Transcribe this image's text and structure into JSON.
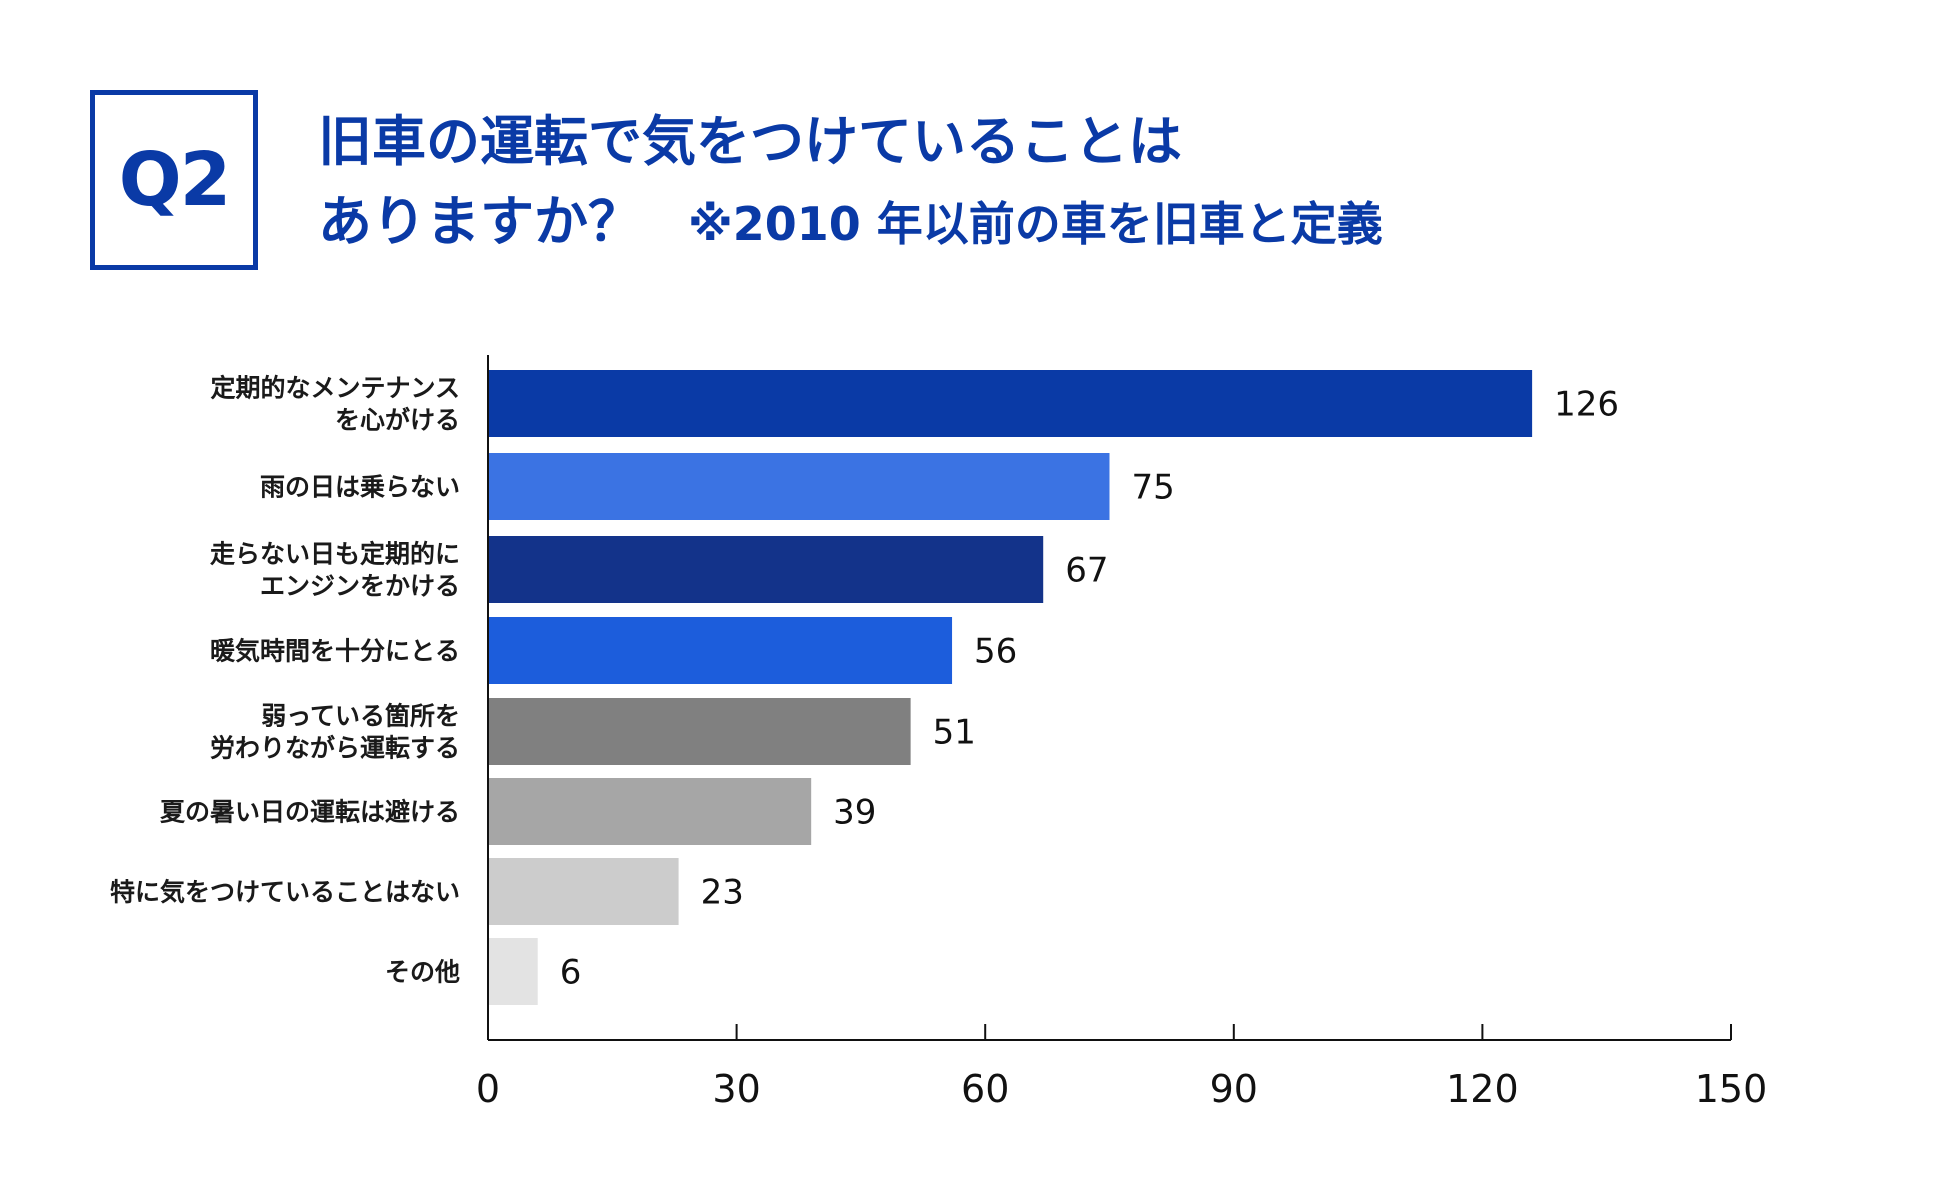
{
  "header": {
    "badge": "Q2",
    "title_line1": "旧車の運転で気をつけていることは",
    "title_line2": "ありますか？",
    "title_note": "※2010 年以前の車を旧車と定義"
  },
  "chart_data": {
    "type": "bar",
    "orientation": "horizontal",
    "title": "旧車の運転で気をつけていることはありますか？ ※2010 年以前の車を旧車と定義",
    "categories": [
      [
        "定期的なメンテナンス",
        "を心がける"
      ],
      [
        "雨の日は乗らない"
      ],
      [
        "走らない日も定期的に",
        "エンジンをかける"
      ],
      [
        "暖気時間を十分にとる"
      ],
      [
        "弱っている箇所を",
        "労わりながら運転する"
      ],
      [
        "夏の暑い日の運転は避ける"
      ],
      [
        "特に気をつけていることはない"
      ],
      [
        "その他"
      ]
    ],
    "values": [
      126,
      75,
      67,
      56,
      51,
      39,
      23,
      6
    ],
    "value_labels": [
      "126",
      "75",
      "67",
      "56",
      "51",
      "39",
      "23",
      "6"
    ],
    "colors": [
      "#0a3aa6",
      "#3b73e3",
      "#13338a",
      "#1c5ddc",
      "#808080",
      "#a6a6a6",
      "#cccccc",
      "#e3e3e3"
    ],
    "xlim": [
      0,
      150
    ],
    "xticks": [
      0,
      30,
      60,
      90,
      120,
      150
    ],
    "xtick_labels": [
      "0",
      "30",
      "60",
      "90",
      "120",
      "150"
    ],
    "xlabel": "",
    "ylabel": "",
    "grid": false
  }
}
